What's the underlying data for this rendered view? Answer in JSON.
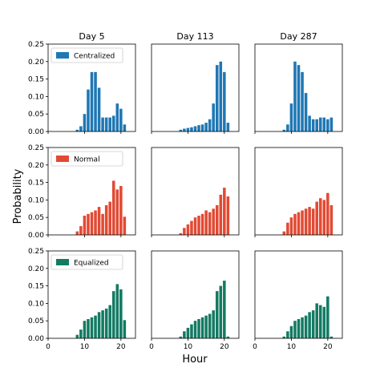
{
  "chart_data": {
    "type": "bar",
    "layout": "3x3 grid of histograms",
    "xlabel": "Hour",
    "ylabel": "Probability",
    "xlim": [
      0,
      24
    ],
    "ylim": [
      0,
      0.25
    ],
    "x_ticks": [
      "0",
      "10",
      "20"
    ],
    "y_ticks": [
      "0.00",
      "0.05",
      "0.10",
      "0.15",
      "0.20",
      "0.25"
    ],
    "columns": [
      "Day 5",
      "Day 113",
      "Day 287"
    ],
    "hours": [
      8,
      9,
      10,
      11,
      12,
      13,
      14,
      15,
      16,
      17,
      18,
      19,
      20,
      21
    ],
    "legend_position": "upper-left",
    "rows": [
      {
        "series_name": "Centralized",
        "color": "#1f77b4",
        "panels": [
          {
            "day": "Day 5",
            "values": [
              0.005,
              0.015,
              0.05,
              0.12,
              0.17,
              0.17,
              0.125,
              0.04,
              0.04,
              0.04,
              0.045,
              0.08,
              0.065,
              0.02
            ]
          },
          {
            "day": "Day 113",
            "values": [
              0.005,
              0.008,
              0.01,
              0.012,
              0.015,
              0.018,
              0.02,
              0.025,
              0.035,
              0.08,
              0.19,
              0.2,
              0.17,
              0.025
            ]
          },
          {
            "day": "Day 287",
            "values": [
              0.005,
              0.02,
              0.08,
              0.2,
              0.19,
              0.17,
              0.11,
              0.045,
              0.035,
              0.035,
              0.04,
              0.04,
              0.035,
              0.04
            ]
          }
        ]
      },
      {
        "series_name": "Normal",
        "color": "#e24a33",
        "panels": [
          {
            "day": "Day 5",
            "values": [
              0.01,
              0.025,
              0.055,
              0.06,
              0.065,
              0.07,
              0.08,
              0.06,
              0.085,
              0.095,
              0.155,
              0.13,
              0.14,
              0.052
            ]
          },
          {
            "day": "Day 113",
            "values": [
              0.005,
              0.02,
              0.03,
              0.04,
              0.05,
              0.055,
              0.06,
              0.07,
              0.065,
              0.075,
              0.085,
              0.115,
              0.135,
              0.11
            ]
          },
          {
            "day": "Day 287",
            "values": [
              0.01,
              0.035,
              0.05,
              0.06,
              0.065,
              0.07,
              0.075,
              0.08,
              0.075,
              0.095,
              0.105,
              0.1,
              0.12,
              0.085
            ]
          }
        ]
      },
      {
        "series_name": "Equalized",
        "color": "#137a63",
        "panels": [
          {
            "day": "Day 5",
            "values": [
              0.01,
              0.025,
              0.05,
              0.055,
              0.06,
              0.065,
              0.075,
              0.08,
              0.085,
              0.095,
              0.135,
              0.155,
              0.14,
              0.052
            ]
          },
          {
            "day": "Day 113",
            "values": [
              0.005,
              0.02,
              0.03,
              0.04,
              0.05,
              0.055,
              0.06,
              0.065,
              0.07,
              0.08,
              0.135,
              0.15,
              0.165,
              0.005
            ]
          },
          {
            "day": "Day 287",
            "values": [
              0.005,
              0.02,
              0.035,
              0.05,
              0.055,
              0.06,
              0.065,
              0.075,
              0.08,
              0.1,
              0.095,
              0.09,
              0.12,
              0.005
            ]
          }
        ]
      }
    ]
  }
}
